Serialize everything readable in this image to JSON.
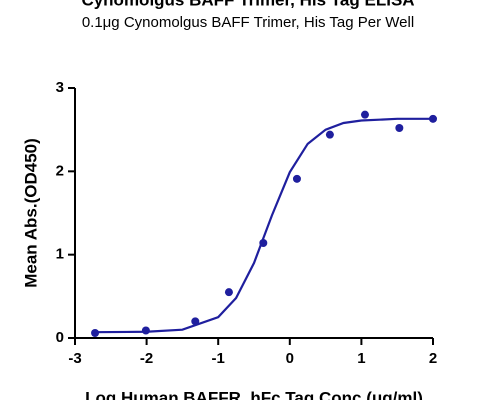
{
  "chart_data": {
    "type": "scatter",
    "title": "Cynomolgus BAFF Trimer, His Tag ELISA",
    "subtitle": "0.1μg Cynomolgus BAFF Trimer, His Tag Per Well",
    "x_label": "Log Human BAFFR, hFc Tag Conc.(μg/ml)",
    "y_label": "Mean Abs.(OD450)",
    "xlim": [
      -3,
      2
    ],
    "ylim": [
      0,
      3
    ],
    "xticks": [
      -3,
      -2,
      -1,
      0,
      1,
      2
    ],
    "yticks": [
      0,
      1,
      2,
      3
    ],
    "series": [
      {
        "color": "#1f1f9e",
        "x": [
          -2.72,
          -2.01,
          -1.32,
          -0.85,
          -0.37,
          0.1,
          0.56,
          1.05,
          1.53,
          2.0
        ],
        "values": [
          0.06,
          0.09,
          0.2,
          0.55,
          1.14,
          1.91,
          2.44,
          2.68,
          2.52,
          2.63
        ]
      }
    ],
    "fit_curve": {
      "color": "#1f1f9e",
      "x": [
        -2.75,
        -2.5,
        -2.0,
        -1.5,
        -1.0,
        -0.75,
        -0.5,
        -0.25,
        0,
        0.25,
        0.5,
        0.75,
        1.0,
        1.5,
        2.0
      ],
      "values": [
        0.07,
        0.071,
        0.075,
        0.1,
        0.25,
        0.48,
        0.9,
        1.47,
        1.99,
        2.33,
        2.5,
        2.58,
        2.61,
        2.63,
        2.63
      ]
    }
  }
}
